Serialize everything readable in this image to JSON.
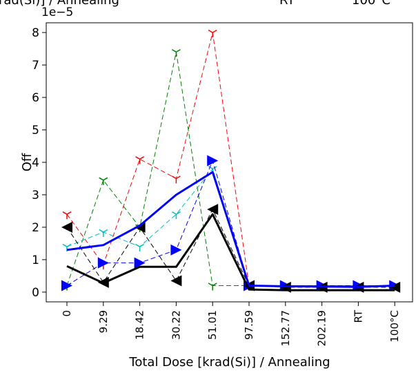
{
  "header": {
    "left_label": "rad(Si)] / Annealing",
    "rt_label": "RT",
    "temp_label": "100°C"
  },
  "chart_data": {
    "type": "line",
    "title": "",
    "xlabel": "Total Dose [krad(Si)] / Annealing",
    "ylabel": "Off",
    "y_multiplier": "1e−5",
    "categories": [
      "0",
      "9.29",
      "18.42",
      "30.22",
      "51.01",
      "97.59",
      "152.77",
      "202.19",
      "RT",
      "100°C"
    ],
    "ylim": [
      -0.3,
      8.3
    ],
    "yticks": [
      0,
      1,
      2,
      3,
      4,
      5,
      6,
      7,
      8
    ],
    "grid": false,
    "series": [
      {
        "color": "#ff0000",
        "dash": "dashed",
        "marker": "tri_down",
        "width": 1,
        "values": [
          2.4,
          0.85,
          4.1,
          3.5,
          8.0,
          0.2,
          0.2,
          0.2,
          0.2,
          0.2
        ]
      },
      {
        "color": "#008000",
        "dash": "dashed",
        "marker": "tri_down",
        "width": 1,
        "values": [
          0.2,
          3.45,
          2.0,
          7.4,
          0.2,
          0.2,
          0.2,
          0.2,
          0.2,
          0.2
        ]
      },
      {
        "color": "#00bfbf",
        "dash": "dashed",
        "marker": "tri_down",
        "width": 1,
        "values": [
          1.4,
          1.85,
          1.4,
          2.4,
          3.8,
          0.2,
          0.2,
          0.2,
          0.2,
          0.2
        ]
      },
      {
        "color": "#0000ff",
        "dash": "dashed",
        "marker": "triangle_right",
        "width": 1,
        "values": [
          0.2,
          0.9,
          0.9,
          1.3,
          4.05,
          0.2,
          0.2,
          0.2,
          0.2,
          0.2
        ]
      },
      {
        "color": "#000000",
        "dash": "dashed",
        "marker": "triangle_left",
        "width": 1,
        "values": [
          2.0,
          0.3,
          2.0,
          0.35,
          2.55,
          0.2,
          0.15,
          0.15,
          0.15,
          0.15
        ]
      },
      {
        "color": "#0000ff",
        "dash": "solid",
        "marker": "none",
        "width": 3,
        "values": [
          1.3,
          1.45,
          2.05,
          3.0,
          3.7,
          0.2,
          0.18,
          0.17,
          0.16,
          0.2
        ]
      },
      {
        "color": "#000000",
        "dash": "solid",
        "marker": "none",
        "width": 3,
        "values": [
          0.8,
          0.28,
          0.78,
          0.78,
          2.4,
          0.08,
          0.06,
          0.06,
          0.06,
          0.06
        ]
      }
    ]
  }
}
